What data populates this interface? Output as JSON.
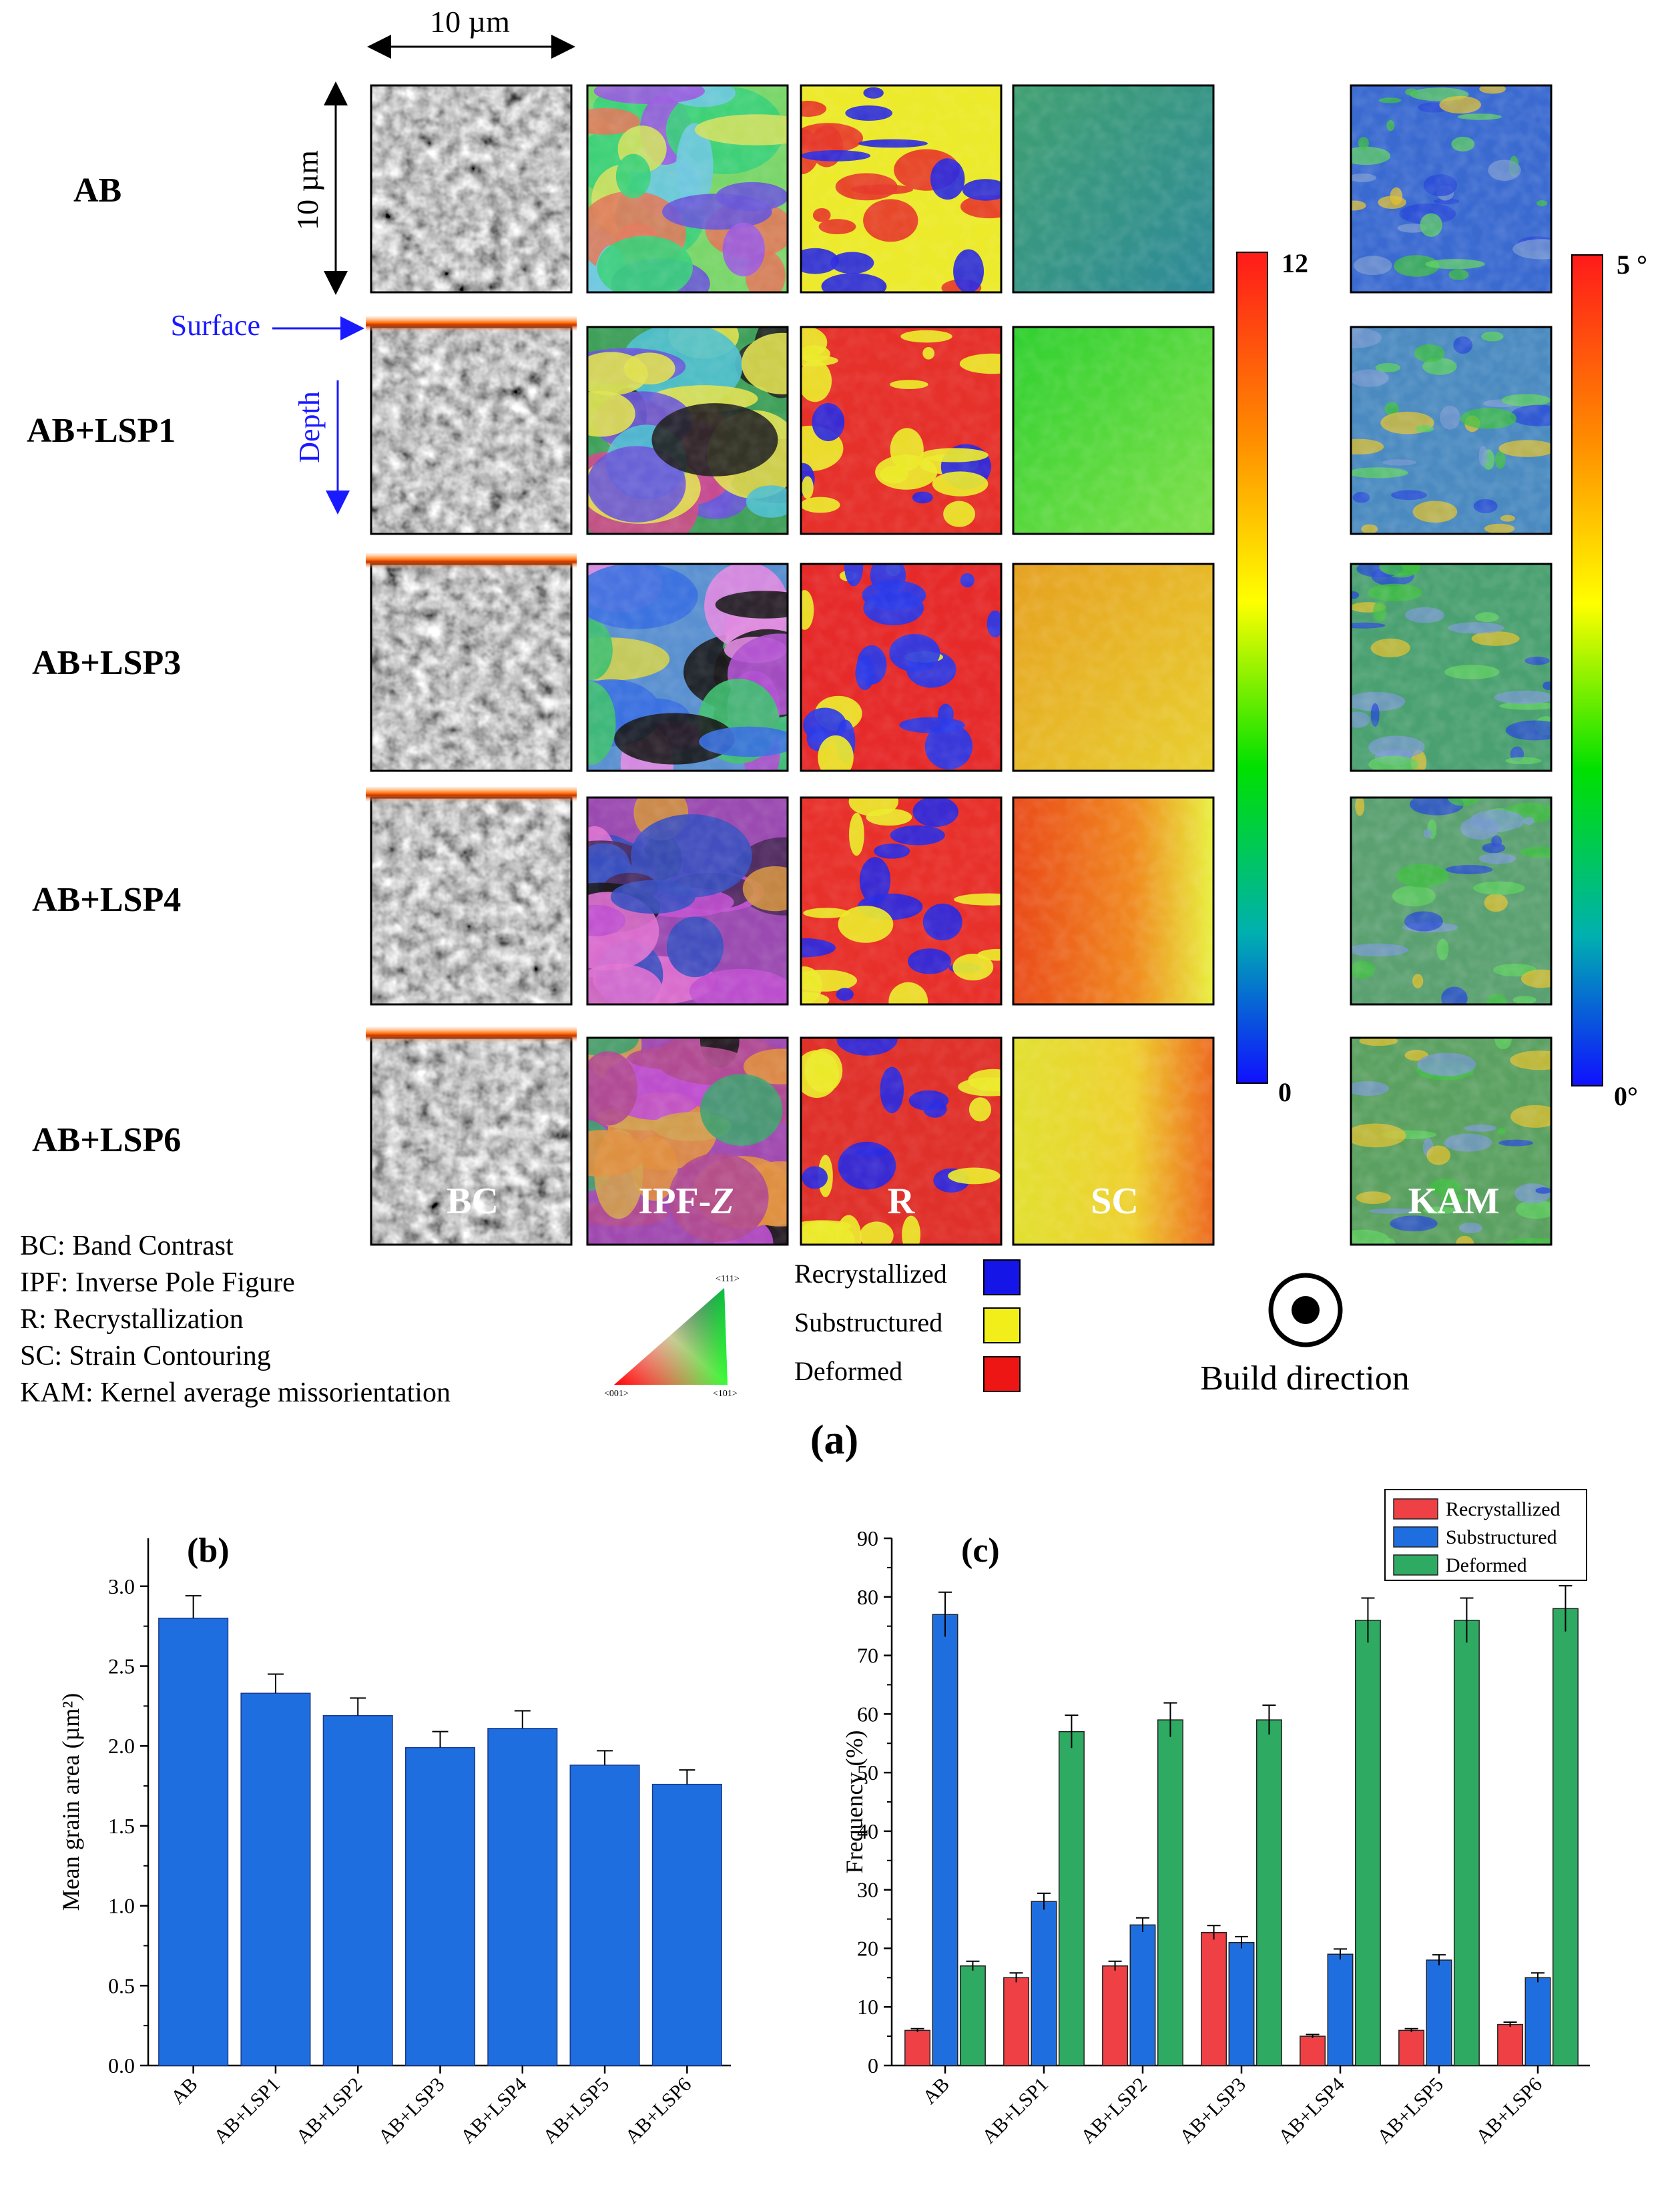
{
  "panel_a": {
    "scale_h": "10 µm",
    "scale_v": "10 µm",
    "surface_label": "Surface",
    "depth_label": "Depth",
    "rows": [
      "AB",
      "AB+LSP1",
      "AB+LSP3",
      "AB+LSP4",
      "AB+LSP6"
    ],
    "map_labels": {
      "bc": "BC",
      "ipf": "IPF-",
      "ipf_z": "Z",
      "r": "R",
      "sc": "SC",
      "kam": "KAM"
    },
    "sc_scale": {
      "max": "12",
      "min": "0"
    },
    "kam_scale": {
      "max": "5 °",
      "min": "0°"
    },
    "legend_defs": [
      "BC: Band Contrast",
      "IPF: Inverse Pole Figure",
      "R: Recrystallization",
      "SC: Strain Contouring",
      "KAM: Kernel average missorientation"
    ],
    "ipf_triangle": {
      "top": "<111>",
      "left": "<001>",
      "right": "<101>"
    },
    "r_legend": [
      {
        "label": "Recrystallized",
        "color": "#1515e8"
      },
      {
        "label": "Substructured",
        "color": "#f2ee1a"
      },
      {
        "label": "Deformed",
        "color": "#ee1515"
      }
    ],
    "build_direction": "Build direction",
    "caption": "(a)"
  },
  "chart_data": [
    {
      "panel": "(b)",
      "type": "bar",
      "title": "",
      "ylabel": "Mean grain area (µm²)",
      "xlabel": "",
      "categories": [
        "AB",
        "AB+LSP1",
        "AB+LSP2",
        "AB+LSP3",
        "AB+LSP4",
        "AB+LSP5",
        "AB+LSP6"
      ],
      "values": [
        2.8,
        2.33,
        2.19,
        1.99,
        2.11,
        1.88,
        1.76
      ],
      "errors": [
        0.14,
        0.12,
        0.11,
        0.1,
        0.11,
        0.09,
        0.09
      ],
      "ylim": [
        0,
        3.3
      ],
      "yticks": [
        "0.0",
        "0.5",
        "1.0",
        "1.5",
        "2.0",
        "2.5",
        "3.0"
      ],
      "color": "#1f6ee0"
    },
    {
      "panel": "(c)",
      "type": "bar",
      "title": "",
      "ylabel": "Frequency (%)",
      "xlabel": "",
      "categories": [
        "AB",
        "AB+LSP1",
        "AB+LSP2",
        "AB+LSP3",
        "AB+LSP4",
        "AB+LSP5",
        "AB+LSP6"
      ],
      "series": [
        {
          "name": "Recrystallized",
          "color": "#ee4045",
          "values": [
            6,
            15,
            17,
            22.7,
            5,
            6,
            7
          ],
          "errors": [
            0.3,
            0.8,
            0.8,
            1.2,
            0.3,
            0.3,
            0.4
          ]
        },
        {
          "name": "Substructured",
          "color": "#1f6ee0",
          "values": [
            77,
            28,
            24,
            21,
            19,
            18,
            15
          ],
          "errors": [
            3.8,
            1.4,
            1.2,
            1.0,
            0.9,
            0.9,
            0.8
          ]
        },
        {
          "name": "Deformed",
          "color": "#2eaa62",
          "values": [
            17,
            57,
            59,
            59,
            76,
            76,
            78
          ],
          "errors": [
            0.8,
            2.8,
            2.9,
            2.5,
            3.8,
            3.8,
            3.9
          ]
        }
      ],
      "ylim": [
        0,
        90
      ],
      "yticks": [
        "0",
        "10",
        "20",
        "30",
        "40",
        "50",
        "60",
        "70",
        "80",
        "90"
      ],
      "legend": "top-right"
    }
  ]
}
